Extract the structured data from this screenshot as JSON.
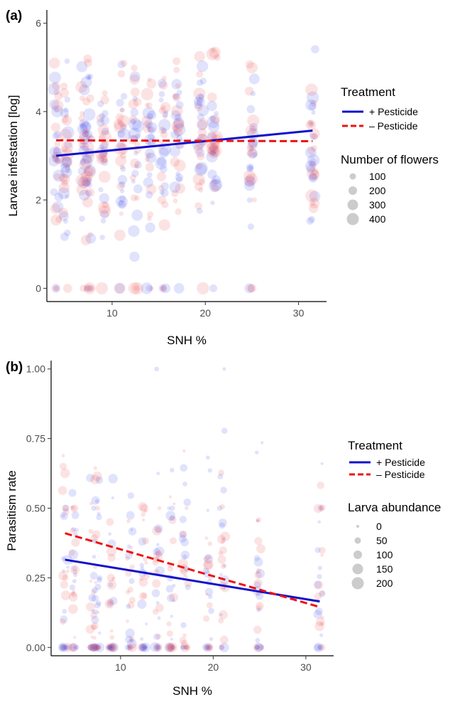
{
  "chart_data": [
    {
      "panel_label": "(a)",
      "type": "scatter",
      "xlabel": "SNH %",
      "ylabel": "Larvae infestation [log]",
      "xlim": [
        3,
        33
      ],
      "ylim": [
        -0.3,
        6.3
      ],
      "xticks": [
        10,
        20,
        30
      ],
      "yticks": [
        0,
        2,
        4,
        6
      ],
      "x_groups": [
        4,
        5,
        7,
        7.5,
        9,
        11,
        12.5,
        14,
        15.5,
        17,
        19.5,
        21,
        25,
        31.5
      ],
      "treatment_legend": {
        "title": "Treatment",
        "entries": [
          {
            "label": "+ Pesticide",
            "color": "#1111cc",
            "linestyle": "solid"
          },
          {
            "label": "– Pesticide",
            "color": "#ee1111",
            "linestyle": "dashed"
          }
        ]
      },
      "size_legend": {
        "title": "Number of flowers",
        "entries": [
          "100",
          "200",
          "300",
          "400"
        ]
      },
      "series": [
        {
          "name": "+ Pesticide",
          "color": "#1111cc",
          "trend": [
            [
              4,
              3.0
            ],
            [
              31.5,
              3.57
            ]
          ]
        },
        {
          "name": "– Pesticide",
          "color": "#ee1111",
          "trend": [
            [
              4,
              3.35
            ],
            [
              31.5,
              3.33
            ]
          ]
        }
      ]
    },
    {
      "panel_label": "(b)",
      "type": "scatter",
      "xlabel": "SNH %",
      "ylabel": "Parasitism rate",
      "xlim": [
        2.5,
        33
      ],
      "ylim": [
        -0.03,
        1.03
      ],
      "xticks": [
        10,
        20,
        30
      ],
      "yticks": [
        "0.00",
        "0.25",
        "0.50",
        "0.75",
        "1.00"
      ],
      "x_groups": [
        4,
        5,
        7,
        7.5,
        9,
        11,
        12.5,
        14,
        15.5,
        17,
        19.5,
        21,
        25,
        31.5
      ],
      "treatment_legend": {
        "title": "Treatment",
        "entries": [
          {
            "label": "+ Pesticide",
            "color": "#1111cc",
            "linestyle": "solid"
          },
          {
            "label": "– Pesticide",
            "color": "#ee1111",
            "linestyle": "dashed"
          }
        ]
      },
      "size_legend": {
        "title": "Larva abundance",
        "entries": [
          "0",
          "50",
          "100",
          "150",
          "200"
        ]
      },
      "series": [
        {
          "name": "+ Pesticide",
          "color": "#1111cc",
          "trend": [
            [
              4,
              0.315
            ],
            [
              31.5,
              0.165
            ]
          ]
        },
        {
          "name": "– Pesticide",
          "color": "#ee1111",
          "trend": [
            [
              4,
              0.41
            ],
            [
              31.5,
              0.145
            ]
          ]
        }
      ]
    }
  ]
}
